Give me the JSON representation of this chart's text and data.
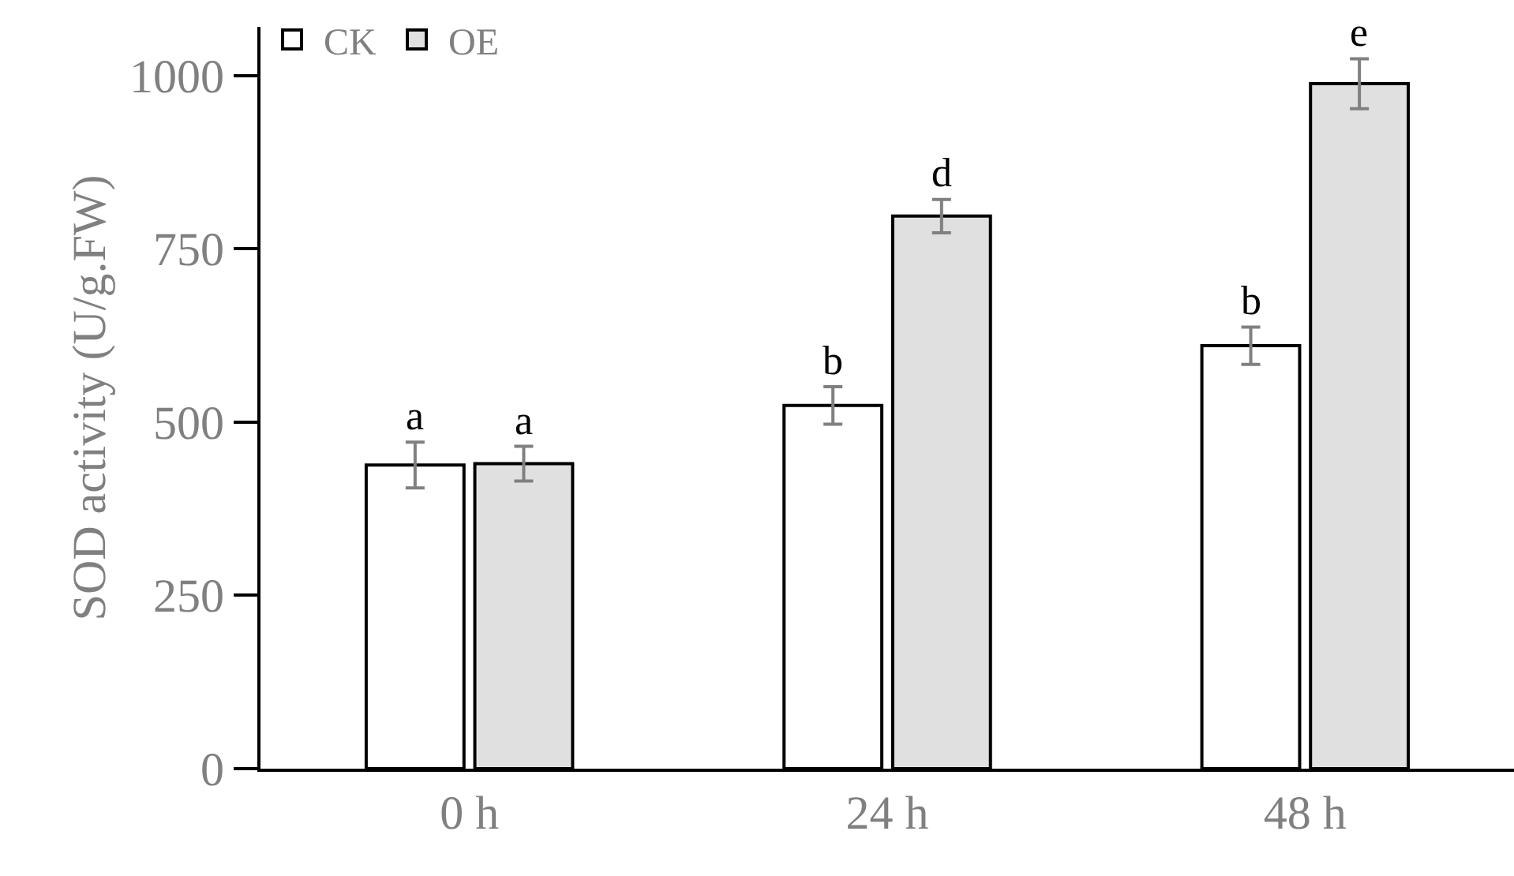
{
  "chart_data": {
    "type": "bar",
    "ylabel": "SOD activity (U/g.FW)",
    "categories": [
      "0 h",
      "24 h",
      "48 h"
    ],
    "series": [
      {
        "name": "CK",
        "color": "#ffffff",
        "values": [
          438,
          524,
          610
        ],
        "errors": [
          33,
          27,
          27
        ]
      },
      {
        "name": "OE",
        "color": "#e0e0e0",
        "values": [
          440,
          797,
          988
        ],
        "errors": [
          25,
          24,
          36
        ]
      }
    ],
    "ylim": [
      0,
      1070
    ],
    "yticks": [
      0,
      250,
      500,
      750,
      1000
    ],
    "grid": false,
    "legend": "top left",
    "annotations": [
      {
        "text": "a",
        "x": "0 h",
        "y": 438
      },
      {
        "text": "a",
        "x": "0 h",
        "y": 440
      },
      {
        "text": "b",
        "x": "24 h",
        "y": 524
      },
      {
        "text": "d",
        "x": "24 h",
        "y": 797
      },
      {
        "text": "b",
        "x": "48 h",
        "y": 610
      },
      {
        "text": "e",
        "x": "48 h",
        "y": 988
      }
    ]
  }
}
